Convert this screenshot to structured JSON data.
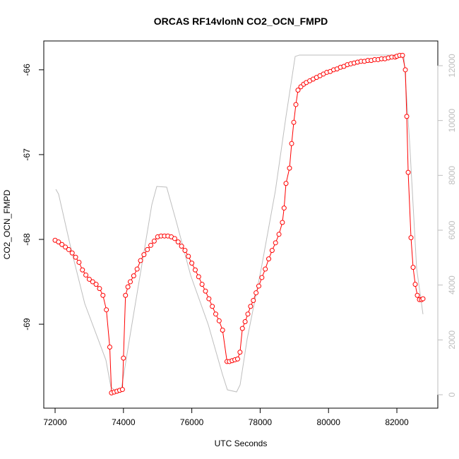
{
  "chart_data": {
    "type": "line",
    "title": "ORCAS RF14vlonN CO2_OCN_FMPD",
    "xlabel": "UTC Seconds",
    "ylabel": "CO2_OCN_FMPD",
    "xlim": [
      71669,
      83198
    ],
    "ylim": [
      -69.99,
      -65.66
    ],
    "y2lim": [
      -489,
      12901
    ],
    "xticks": [
      72000,
      74000,
      76000,
      78000,
      80000,
      82000
    ],
    "yticks": [
      -66,
      -67,
      -68,
      -69
    ],
    "y2ticks": [
      0,
      2000,
      4000,
      6000,
      8000,
      10000,
      12000
    ],
    "series": [
      {
        "color": "#ff0000",
        "markers": true,
        "x": [
          72000,
          72100,
          72200,
          72300,
          72400,
          72500,
          72600,
          72700,
          72800,
          72900,
          73000,
          73100,
          73200,
          73300,
          73400,
          73500,
          73600,
          73650,
          73730,
          73810,
          73890,
          73970,
          74000,
          74060,
          74130,
          74200,
          74300,
          74400,
          74500,
          74600,
          74700,
          74800,
          74900,
          75000,
          75100,
          75200,
          75300,
          75400,
          75500,
          75600,
          75700,
          75800,
          75900,
          76000,
          76100,
          76200,
          76300,
          76400,
          76500,
          76600,
          76700,
          76800,
          76900,
          77030,
          77100,
          77180,
          77260,
          77340,
          77410,
          77480,
          77560,
          77640,
          77720,
          77800,
          77880,
          77960,
          78050,
          78150,
          78250,
          78350,
          78450,
          78550,
          78650,
          78700,
          78756,
          78859,
          78921,
          78983,
          79045,
          79107,
          79190,
          79272,
          79350,
          79450,
          79550,
          79650,
          79750,
          79850,
          79950,
          80050,
          80150,
          80250,
          80350,
          80450,
          80550,
          80650,
          80750,
          80850,
          80950,
          81050,
          81150,
          81250,
          81350,
          81450,
          81550,
          81650,
          81750,
          81850,
          81950,
          82000,
          82082,
          82165,
          82248,
          82289,
          82331,
          82413,
          82475,
          82537,
          82599,
          82661,
          82723,
          82764
        ],
        "values": [
          -68.01,
          -68.03,
          -68.06,
          -68.09,
          -68.12,
          -68.16,
          -68.21,
          -68.27,
          -68.36,
          -68.42,
          -68.47,
          -68.5,
          -68.53,
          -68.58,
          -68.66,
          -68.83,
          -69.27,
          -69.81,
          -69.8,
          -69.79,
          -69.78,
          -69.77,
          -69.4,
          -68.66,
          -68.56,
          -68.5,
          -68.43,
          -68.35,
          -68.25,
          -68.18,
          -68.12,
          -68.07,
          -68.02,
          -67.97,
          -67.96,
          -67.96,
          -67.96,
          -67.97,
          -67.99,
          -68.03,
          -68.08,
          -68.13,
          -68.2,
          -68.28,
          -68.36,
          -68.44,
          -68.53,
          -68.61,
          -68.7,
          -68.79,
          -68.88,
          -68.96,
          -69.07,
          -69.44,
          -69.44,
          -69.43,
          -69.42,
          -69.41,
          -69.33,
          -69.05,
          -68.97,
          -68.88,
          -68.79,
          -68.72,
          -68.63,
          -68.55,
          -68.45,
          -68.35,
          -68.23,
          -68.13,
          -68.04,
          -67.94,
          -67.8,
          -67.63,
          -67.34,
          -67.16,
          -66.87,
          -66.62,
          -66.41,
          -66.24,
          -66.2,
          -66.17,
          -66.15,
          -66.13,
          -66.11,
          -66.09,
          -66.07,
          -66.05,
          -66.03,
          -66.02,
          -66.0,
          -65.99,
          -65.97,
          -65.96,
          -65.94,
          -65.93,
          -65.92,
          -65.91,
          -65.9,
          -65.9,
          -65.89,
          -65.89,
          -65.88,
          -65.88,
          -65.87,
          -65.87,
          -65.86,
          -65.85,
          -65.85,
          -65.84,
          -65.83,
          -65.83,
          -66.0,
          -66.55,
          -67.21,
          -67.98,
          -68.33,
          -68.53,
          -68.66,
          -68.71,
          -68.71,
          -68.7
        ]
      },
      {
        "color": "#bebebe",
        "axis": "y2",
        "markers": false,
        "x": [
          72021,
          72103,
          72455,
          72868,
          73488,
          73632,
          73797,
          73942,
          74211,
          74521,
          74830,
          74975,
          75264,
          75553,
          75967,
          76483,
          76896,
          77041,
          77310,
          77413,
          77620,
          78033,
          78446,
          78756,
          79024,
          79148,
          82082,
          82206,
          82371,
          82578,
          82764
        ],
        "values": [
          7494,
          7314,
          5382,
          3322,
          1262,
          283,
          103,
          232,
          2292,
          4610,
          6928,
          7597,
          7571,
          6284,
          4352,
          2550,
          747,
          180,
          103,
          360,
          2034,
          4610,
          7443,
          10147,
          12336,
          12387,
          12387,
          12336,
          9245,
          4610,
          2936
        ]
      }
    ]
  }
}
